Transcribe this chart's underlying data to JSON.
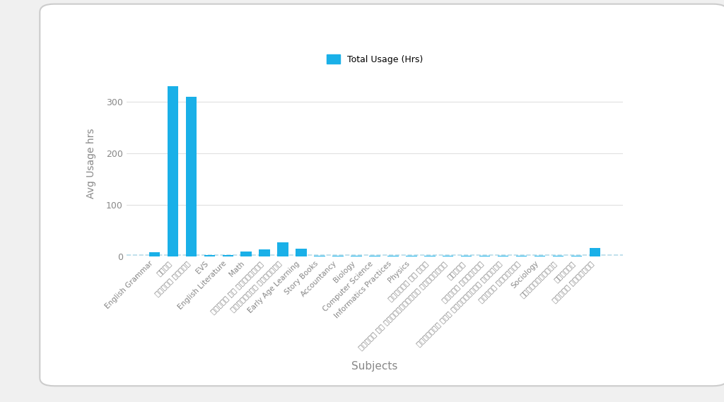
{
  "categories": [
    "English Grammar",
    "गणित",
    "हिंदी साहित",
    "EVS",
    "English Literature",
    "Math",
    "कहानी की पुस्तकें",
    "पर्यावरण विज्ञान",
    "Early Age Learning",
    "Story Books",
    "Accountancy",
    "Biology",
    "Computer Science",
    "Informatics Practices",
    "Physics",
    "इतिहास और कला",
    "जीवनी और प्रेरणादायक पुस्तकें",
    "भूगोल",
    "रसायन विज्ञान",
    "शारीरिक एवं स्वास्थ्य शिक्षा",
    "हिंदी व्याकरण",
    "Sociology",
    "अर्थशास्त्र",
    "कविताई",
    "हिंदी साहित्य"
  ],
  "values": [
    8,
    330,
    310,
    3,
    2,
    10,
    13,
    27,
    15,
    1,
    1,
    1,
    1,
    1,
    1,
    1,
    1,
    1,
    1,
    1,
    1,
    1,
    1,
    1,
    17
  ],
  "bar_color": "#1ab0e8",
  "dashed_line_color": "#add8e6",
  "ylabel": "Avg Usage hrs",
  "xlabel": "Subjects",
  "legend_label": "Total Usage (Hrs)",
  "ylim": [
    0,
    360
  ],
  "yticks": [
    0,
    100,
    200,
    300
  ],
  "background_color": "#f0f0f0",
  "chart_bg_color": "#ffffff",
  "grid_color": "#e0e0e0"
}
